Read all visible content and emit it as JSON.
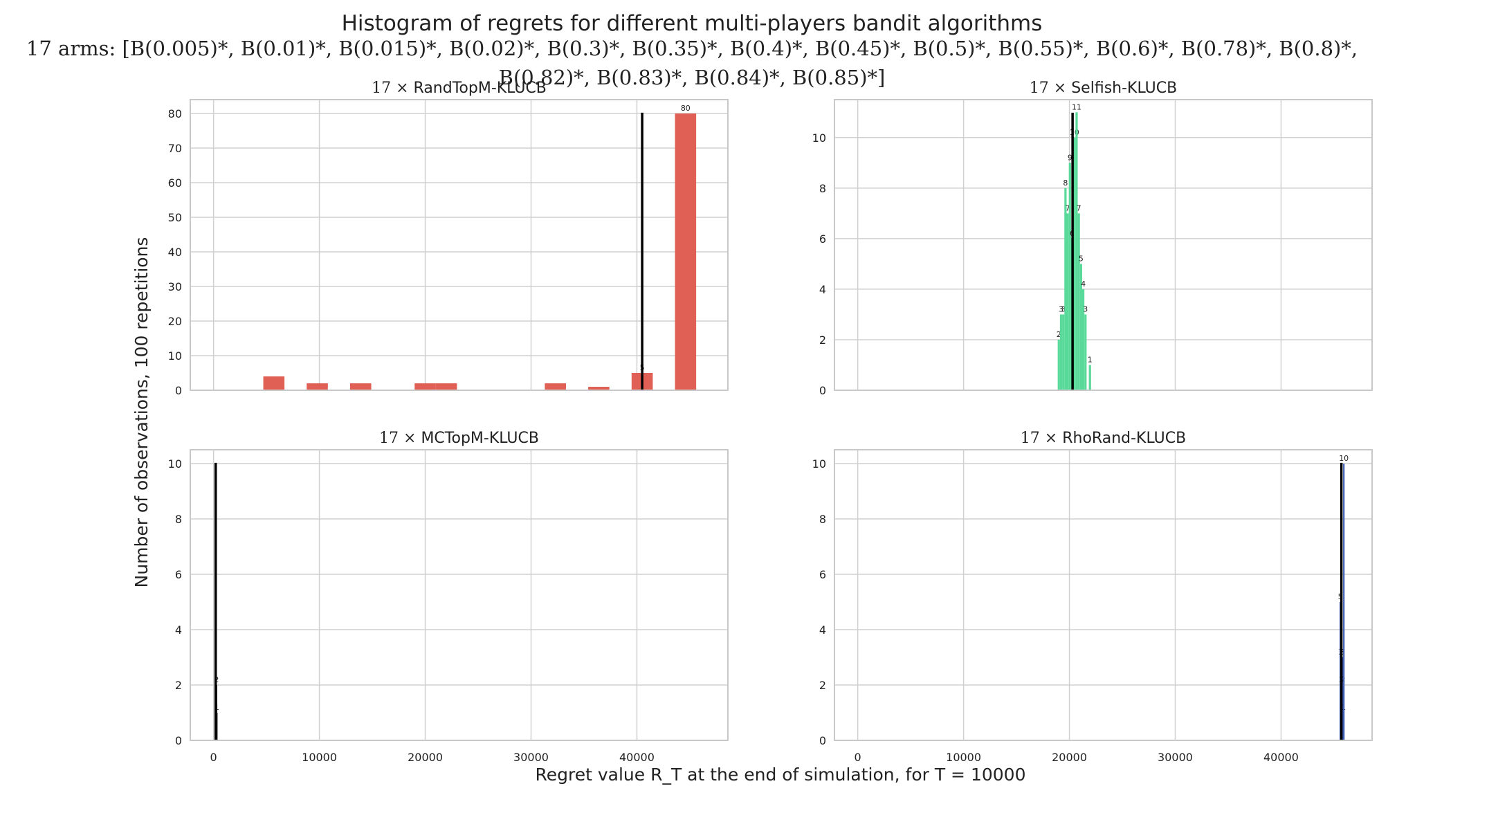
{
  "figure": {
    "title": "Histogram of regrets for different multi-players bandit algorithms",
    "subtitle_line1": "17 arms: [B(0.005)*, B(0.01)*, B(0.015)*, B(0.02)*, B(0.3)*, B(0.35)*, B(0.4)*, B(0.45)*, B(0.5)*, B(0.55)*, B(0.6)*, B(0.78)*, B(0.8)*,",
    "subtitle_line2": "B(0.82)*, B(0.83)*, B(0.84)*, B(0.85)*]",
    "xlabel": "Regret value R_T at the end of simulation, for T = 10000",
    "ylabel": "Number of observations, 100 repetitions"
  },
  "chart_data": [
    {
      "type": "bar",
      "title_prefix": "17 ×",
      "title": "RandTopM-KLUCB",
      "color": "#e06055",
      "xlim": [
        -2200,
        48600
      ],
      "ylim": [
        0,
        84
      ],
      "xticks": [
        0,
        10000,
        20000,
        30000,
        40000
      ],
      "xtick_labels": [
        "0",
        "10000",
        "20000",
        "30000",
        "40000"
      ],
      "show_xticks": false,
      "yticks": [
        0,
        10,
        20,
        30,
        40,
        50,
        60,
        70,
        80
      ],
      "grid": true,
      "bar_width": 2000,
      "bars": [
        {
          "x": 5700,
          "value": 4
        },
        {
          "x": 9800,
          "value": 2
        },
        {
          "x": 13900,
          "value": 2
        },
        {
          "x": 20000,
          "value": 2
        },
        {
          "x": 22000,
          "value": 2
        },
        {
          "x": 32300,
          "value": 2
        },
        {
          "x": 36400,
          "value": 1
        },
        {
          "x": 40500,
          "value": 5,
          "label": "5"
        },
        {
          "x": 44600,
          "value": 80,
          "label": "80"
        }
      ],
      "mean_line": 40500
    },
    {
      "type": "bar",
      "title_prefix": "17 ×",
      "title": "Selfish-KLUCB",
      "color": "#59d99a",
      "xlim": [
        -2200,
        48600
      ],
      "ylim": [
        0,
        11.5
      ],
      "xticks": [
        0,
        10000,
        20000,
        30000,
        40000
      ],
      "xtick_labels": [
        "0",
        "10000",
        "20000",
        "30000",
        "40000"
      ],
      "show_xticks": false,
      "yticks": [
        0,
        2,
        4,
        6,
        8,
        10
      ],
      "grid": true,
      "bar_width": 210,
      "bars": [
        {
          "x": 19000,
          "value": 2,
          "label": "2"
        },
        {
          "x": 19210,
          "value": 3,
          "label": "3"
        },
        {
          "x": 19420,
          "value": 3,
          "label": "3"
        },
        {
          "x": 19630,
          "value": 8,
          "label": "8"
        },
        {
          "x": 19840,
          "value": 7,
          "label": "7"
        },
        {
          "x": 20050,
          "value": 9,
          "label": "9"
        },
        {
          "x": 20260,
          "value": 6,
          "label": "6"
        },
        {
          "x": 20470,
          "value": 10,
          "label": "10"
        },
        {
          "x": 20680,
          "value": 11,
          "label": "11"
        },
        {
          "x": 20890,
          "value": 7,
          "label": "7"
        },
        {
          "x": 21100,
          "value": 5,
          "label": "5"
        },
        {
          "x": 21310,
          "value": 4,
          "label": "4"
        },
        {
          "x": 21520,
          "value": 3,
          "label": "3"
        },
        {
          "x": 21940,
          "value": 1,
          "label": "1"
        }
      ],
      "mean_line": 20300
    },
    {
      "type": "bar",
      "title_prefix": "17 ×",
      "title": "MCTopM-KLUCB",
      "color": "#222222",
      "xlim": [
        -2200,
        48600
      ],
      "ylim": [
        0,
        10.5
      ],
      "xticks": [
        0,
        10000,
        20000,
        30000,
        40000
      ],
      "xtick_labels": [
        "0",
        "10000",
        "20000",
        "30000",
        "40000"
      ],
      "show_xticks": true,
      "yticks": [
        0,
        2,
        4,
        6,
        8,
        10
      ],
      "grid": true,
      "bar_width": 30,
      "bars": [
        {
          "x": 180,
          "value": 10
        },
        {
          "x": 220,
          "value": 2,
          "label": "2"
        },
        {
          "x": 250,
          "value": 1,
          "label": "1"
        }
      ],
      "mean_line": 200
    },
    {
      "type": "bar",
      "title_prefix": "17 ×",
      "title": "RhoRand-KLUCB",
      "color": "#3f5fb5",
      "xlim": [
        -2200,
        48600
      ],
      "ylim": [
        0,
        10.5
      ],
      "xticks": [
        0,
        10000,
        20000,
        30000,
        40000
      ],
      "xtick_labels": [
        "0",
        "10000",
        "20000",
        "30000",
        "40000"
      ],
      "show_xticks": true,
      "yticks": [
        0,
        2,
        4,
        6,
        8,
        10
      ],
      "grid": true,
      "bar_width": 40,
      "bars": [
        {
          "x": 45550,
          "value": 5,
          "label": "5"
        },
        {
          "x": 45600,
          "value": 3,
          "label": "3"
        },
        {
          "x": 45650,
          "value": 2,
          "label": "2"
        },
        {
          "x": 45700,
          "value": 1,
          "label": "1"
        },
        {
          "x": 45750,
          "value": 3,
          "label": "3"
        },
        {
          "x": 45800,
          "value": 2,
          "label": "2"
        },
        {
          "x": 45850,
          "value": 1,
          "label": "1"
        },
        {
          "x": 45880,
          "value": 10,
          "label": "10"
        }
      ],
      "mean_line": 45700
    }
  ]
}
